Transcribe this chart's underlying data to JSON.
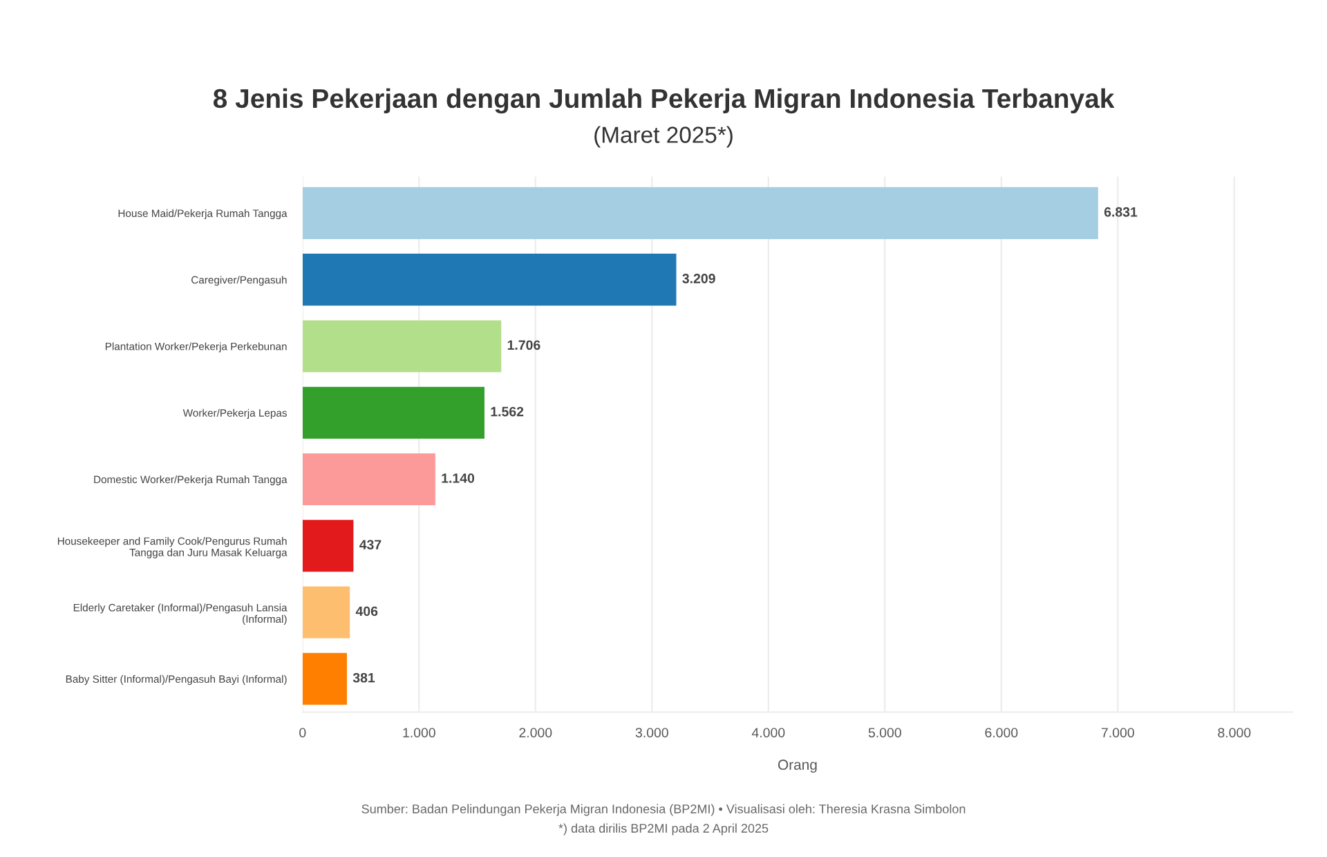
{
  "chart_data": {
    "type": "bar",
    "orientation": "horizontal",
    "title": "8 Jenis Pekerjaan dengan Jumlah Pekerja Migran Indonesia Terbanyak",
    "subtitle": "(Maret 2025*)",
    "xlabel": "Orang",
    "categories": [
      "House Maid/Pekerja Rumah Tangga",
      "Caregiver/Pengasuh",
      "Plantation Worker/Pekerja Perkebunan",
      "Worker/Pekerja Lepas",
      "Domestic Worker/Pekerja Rumah Tangga",
      "Housekeeper and Family Cook/Pengurus Rumah\nTangga dan Juru Masak Keluarga",
      "Elderly Caretaker (Informal)/Pengasuh Lansia\n(Informal)",
      "Baby Sitter (Informal)/Pengasuh Bayi (Informal)"
    ],
    "values": [
      6831,
      3209,
      1706,
      1562,
      1140,
      437,
      406,
      381
    ],
    "value_labels": [
      "6.831",
      "3.209",
      "1.706",
      "1.562",
      "1.140",
      "437",
      "406",
      "381"
    ],
    "colors": [
      "#a6cee3",
      "#1f78b4",
      "#b2df8a",
      "#33a02c",
      "#fb9a99",
      "#e31a1c",
      "#fdbf6f",
      "#ff7f00"
    ],
    "xlim": [
      0,
      8500
    ],
    "xticks": [
      0,
      {
        "value": 1000,
        "label": "1.000"
      },
      {
        "value": 2000,
        "label": "2.000"
      },
      {
        "value": 3000,
        "label": "3.000"
      },
      {
        "value": 4000,
        "label": "4.000"
      },
      {
        "value": 5000,
        "label": "5.000"
      },
      {
        "value": 6000,
        "label": "6.000"
      },
      {
        "value": 7000,
        "label": "7.000"
      },
      {
        "value": 8000,
        "label": "8.000"
      }
    ],
    "grid": "x",
    "annotations": [
      "Sumber: Badan Pelindungan Pekerja Migran Indonesia (BP2MI) • Visualisasi oleh: Theresia Krasna Simbolon",
      "*) data dirilis BP2MI pada 2 April 2025"
    ]
  }
}
